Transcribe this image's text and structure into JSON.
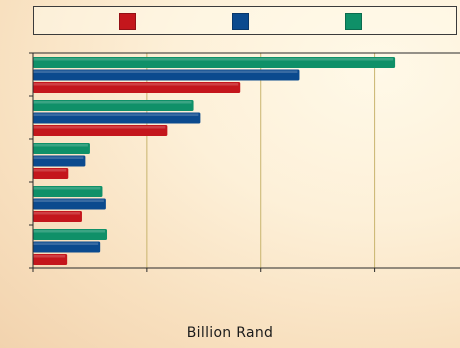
{
  "chart_data": {
    "type": "bar",
    "orientation": "horizontal",
    "categories": [
      "",
      "",
      "",
      "",
      ""
    ],
    "series": [
      {
        "values": [
          18.2,
          11.8,
          3.1,
          4.3,
          3.0
        ],
        "color": "#c4161c"
      },
      {
        "values": [
          23.4,
          14.7,
          4.6,
          6.4,
          5.9
        ],
        "color": "#0b4a8e"
      },
      {
        "values": [
          31.8,
          14.1,
          5.0,
          6.1,
          6.5
        ],
        "color": "#0f9068"
      }
    ],
    "xlabel": "Billion Rand",
    "ylabel": "",
    "xlim": [
      0,
      37.5
    ],
    "x_ticks": [
      0,
      10,
      20,
      30
    ],
    "grid": true,
    "legend": "top"
  }
}
